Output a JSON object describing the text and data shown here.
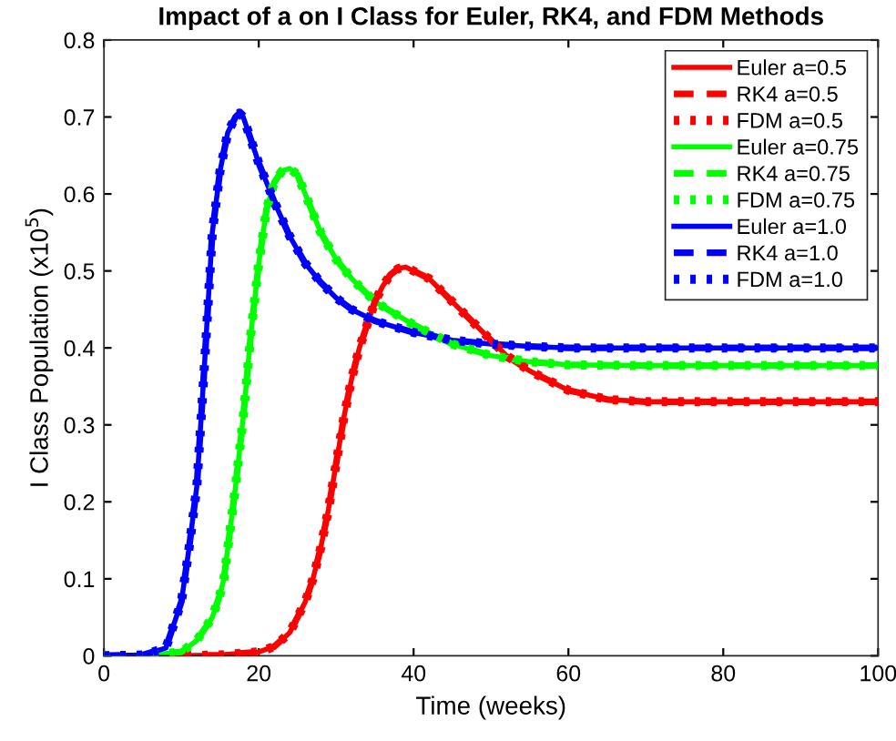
{
  "chart_data": {
    "type": "line",
    "title": "Impact of a on I Class for Euler, RK4, and FDM Methods",
    "xlabel": "Time (weeks)",
    "ylabel": "I Class Population (x10$^{5}$)",
    "xlim": [
      0,
      100
    ],
    "ylim": [
      0,
      0.8
    ],
    "xticks": [
      0,
      20,
      40,
      60,
      80,
      100
    ],
    "yticks": [
      0,
      0.1,
      0.2,
      0.3,
      0.4,
      0.5,
      0.6,
      0.7,
      0.8
    ],
    "grid": false,
    "legend": "top right",
    "marker": "none",
    "series": [
      {
        "name": "Euler a=0.5",
        "color": "#ff0000",
        "line_style": "solid",
        "x": [
          0,
          10,
          15,
          20,
          22,
          24,
          26,
          27,
          28,
          29,
          30,
          31,
          32,
          33,
          34,
          35,
          36,
          37,
          38,
          39,
          40,
          42,
          44,
          46,
          48,
          50,
          52,
          55,
          60,
          65,
          70,
          80,
          90,
          100
        ],
        "values": [
          0,
          0,
          0.001,
          0.005,
          0.012,
          0.03,
          0.07,
          0.1,
          0.14,
          0.19,
          0.25,
          0.31,
          0.36,
          0.4,
          0.43,
          0.46,
          0.48,
          0.495,
          0.503,
          0.505,
          0.5,
          0.49,
          0.47,
          0.45,
          0.43,
          0.41,
          0.39,
          0.37,
          0.345,
          0.333,
          0.33,
          0.33,
          0.33,
          0.33
        ]
      },
      {
        "name": "RK4 a=0.5",
        "color": "#ff0000",
        "line_style": "dashed",
        "x": [
          0,
          10,
          15,
          20,
          22,
          24,
          26,
          27,
          28,
          29,
          30,
          31,
          32,
          33,
          34,
          35,
          36,
          37,
          38,
          39,
          40,
          42,
          44,
          46,
          48,
          50,
          52,
          55,
          60,
          65,
          70,
          80,
          90,
          100
        ],
        "values": [
          0,
          0,
          0.001,
          0.005,
          0.012,
          0.03,
          0.07,
          0.1,
          0.14,
          0.19,
          0.25,
          0.31,
          0.36,
          0.4,
          0.43,
          0.46,
          0.48,
          0.495,
          0.503,
          0.505,
          0.5,
          0.49,
          0.47,
          0.45,
          0.43,
          0.41,
          0.39,
          0.37,
          0.345,
          0.333,
          0.33,
          0.33,
          0.33,
          0.33
        ]
      },
      {
        "name": "FDM a=0.5",
        "color": "#ff0000",
        "line_style": "dotted",
        "x": [
          0,
          10,
          15,
          20,
          22,
          24,
          26,
          27,
          28,
          29,
          30,
          31,
          32,
          33,
          34,
          35,
          36,
          37,
          38,
          39,
          40,
          42,
          44,
          46,
          48,
          50,
          52,
          55,
          60,
          65,
          70,
          80,
          90,
          100
        ],
        "values": [
          0,
          0,
          0.001,
          0.005,
          0.012,
          0.03,
          0.07,
          0.1,
          0.14,
          0.19,
          0.25,
          0.31,
          0.36,
          0.4,
          0.43,
          0.46,
          0.48,
          0.495,
          0.503,
          0.505,
          0.5,
          0.49,
          0.47,
          0.45,
          0.43,
          0.41,
          0.39,
          0.37,
          0.345,
          0.333,
          0.33,
          0.33,
          0.33,
          0.33
        ]
      },
      {
        "name": "Euler a=0.75",
        "color": "#00ff00",
        "line_style": "solid",
        "x": [
          0,
          5,
          10,
          12,
          14,
          15,
          15.5,
          16,
          17,
          18,
          19,
          20,
          21,
          22,
          23,
          24,
          25,
          26,
          28,
          30,
          32,
          35,
          40,
          45,
          50,
          55,
          60,
          70,
          80,
          90,
          100
        ],
        "values": [
          0,
          0,
          0.005,
          0.02,
          0.05,
          0.08,
          0.1,
          0.14,
          0.22,
          0.31,
          0.42,
          0.51,
          0.58,
          0.615,
          0.63,
          0.633,
          0.625,
          0.6,
          0.55,
          0.515,
          0.49,
          0.46,
          0.43,
          0.405,
          0.39,
          0.382,
          0.378,
          0.377,
          0.377,
          0.377,
          0.377
        ]
      },
      {
        "name": "RK4 a=0.75",
        "color": "#00ff00",
        "line_style": "dashed",
        "x": [
          0,
          5,
          10,
          12,
          14,
          15,
          15.5,
          16,
          17,
          18,
          19,
          20,
          21,
          22,
          23,
          24,
          25,
          26,
          28,
          30,
          32,
          35,
          40,
          45,
          50,
          55,
          60,
          70,
          80,
          90,
          100
        ],
        "values": [
          0,
          0,
          0.005,
          0.02,
          0.05,
          0.08,
          0.1,
          0.14,
          0.22,
          0.31,
          0.42,
          0.51,
          0.58,
          0.615,
          0.63,
          0.633,
          0.625,
          0.6,
          0.55,
          0.515,
          0.49,
          0.46,
          0.43,
          0.405,
          0.39,
          0.382,
          0.378,
          0.377,
          0.377,
          0.377,
          0.377
        ]
      },
      {
        "name": "FDM a=0.75",
        "color": "#00ff00",
        "line_style": "dotted",
        "x": [
          0,
          5,
          10,
          12,
          14,
          15,
          15.5,
          16,
          17,
          18,
          19,
          20,
          21,
          22,
          23,
          24,
          25,
          26,
          28,
          30,
          32,
          35,
          40,
          45,
          50,
          55,
          60,
          70,
          80,
          90,
          100
        ],
        "values": [
          0,
          0,
          0.005,
          0.02,
          0.05,
          0.08,
          0.1,
          0.14,
          0.22,
          0.31,
          0.42,
          0.51,
          0.58,
          0.615,
          0.63,
          0.633,
          0.625,
          0.6,
          0.55,
          0.515,
          0.49,
          0.46,
          0.43,
          0.405,
          0.39,
          0.382,
          0.378,
          0.377,
          0.377,
          0.377,
          0.377
        ]
      },
      {
        "name": "Euler a=1.0",
        "color": "#0000ff",
        "line_style": "solid",
        "x": [
          0,
          5,
          8,
          10,
          11,
          12,
          13,
          14,
          15,
          16,
          17,
          17.5,
          18,
          19,
          20,
          22,
          24,
          26,
          28,
          30,
          32,
          35,
          40,
          45,
          50,
          55,
          60,
          70,
          80,
          90,
          100
        ],
        "values": [
          0,
          0.001,
          0.01,
          0.07,
          0.14,
          0.22,
          0.38,
          0.55,
          0.63,
          0.68,
          0.7,
          0.705,
          0.7,
          0.67,
          0.64,
          0.59,
          0.545,
          0.51,
          0.485,
          0.465,
          0.45,
          0.435,
          0.42,
          0.41,
          0.405,
          0.402,
          0.4,
          0.4,
          0.4,
          0.4,
          0.4
        ]
      },
      {
        "name": "RK4 a=1.0",
        "color": "#0000ff",
        "line_style": "dashed",
        "x": [
          0,
          5,
          8,
          10,
          11,
          12,
          13,
          14,
          15,
          16,
          17,
          17.5,
          18,
          19,
          20,
          22,
          24,
          26,
          28,
          30,
          32,
          35,
          40,
          45,
          50,
          55,
          60,
          70,
          80,
          90,
          100
        ],
        "values": [
          0,
          0.001,
          0.01,
          0.07,
          0.14,
          0.22,
          0.38,
          0.55,
          0.63,
          0.68,
          0.7,
          0.705,
          0.7,
          0.67,
          0.64,
          0.59,
          0.545,
          0.51,
          0.485,
          0.465,
          0.45,
          0.435,
          0.42,
          0.41,
          0.405,
          0.402,
          0.4,
          0.4,
          0.4,
          0.4,
          0.4
        ]
      },
      {
        "name": "FDM a=1.0",
        "color": "#0000ff",
        "line_style": "dotted",
        "x": [
          0,
          5,
          8,
          10,
          11,
          12,
          13,
          14,
          15,
          16,
          17,
          17.5,
          18,
          19,
          20,
          22,
          24,
          26,
          28,
          30,
          32,
          35,
          40,
          45,
          50,
          55,
          60,
          70,
          80,
          90,
          100
        ],
        "values": [
          0,
          0.001,
          0.01,
          0.07,
          0.14,
          0.22,
          0.38,
          0.55,
          0.63,
          0.68,
          0.7,
          0.705,
          0.7,
          0.67,
          0.64,
          0.59,
          0.545,
          0.51,
          0.485,
          0.465,
          0.45,
          0.435,
          0.42,
          0.41,
          0.405,
          0.402,
          0.4,
          0.4,
          0.4,
          0.4,
          0.4
        ]
      }
    ]
  }
}
